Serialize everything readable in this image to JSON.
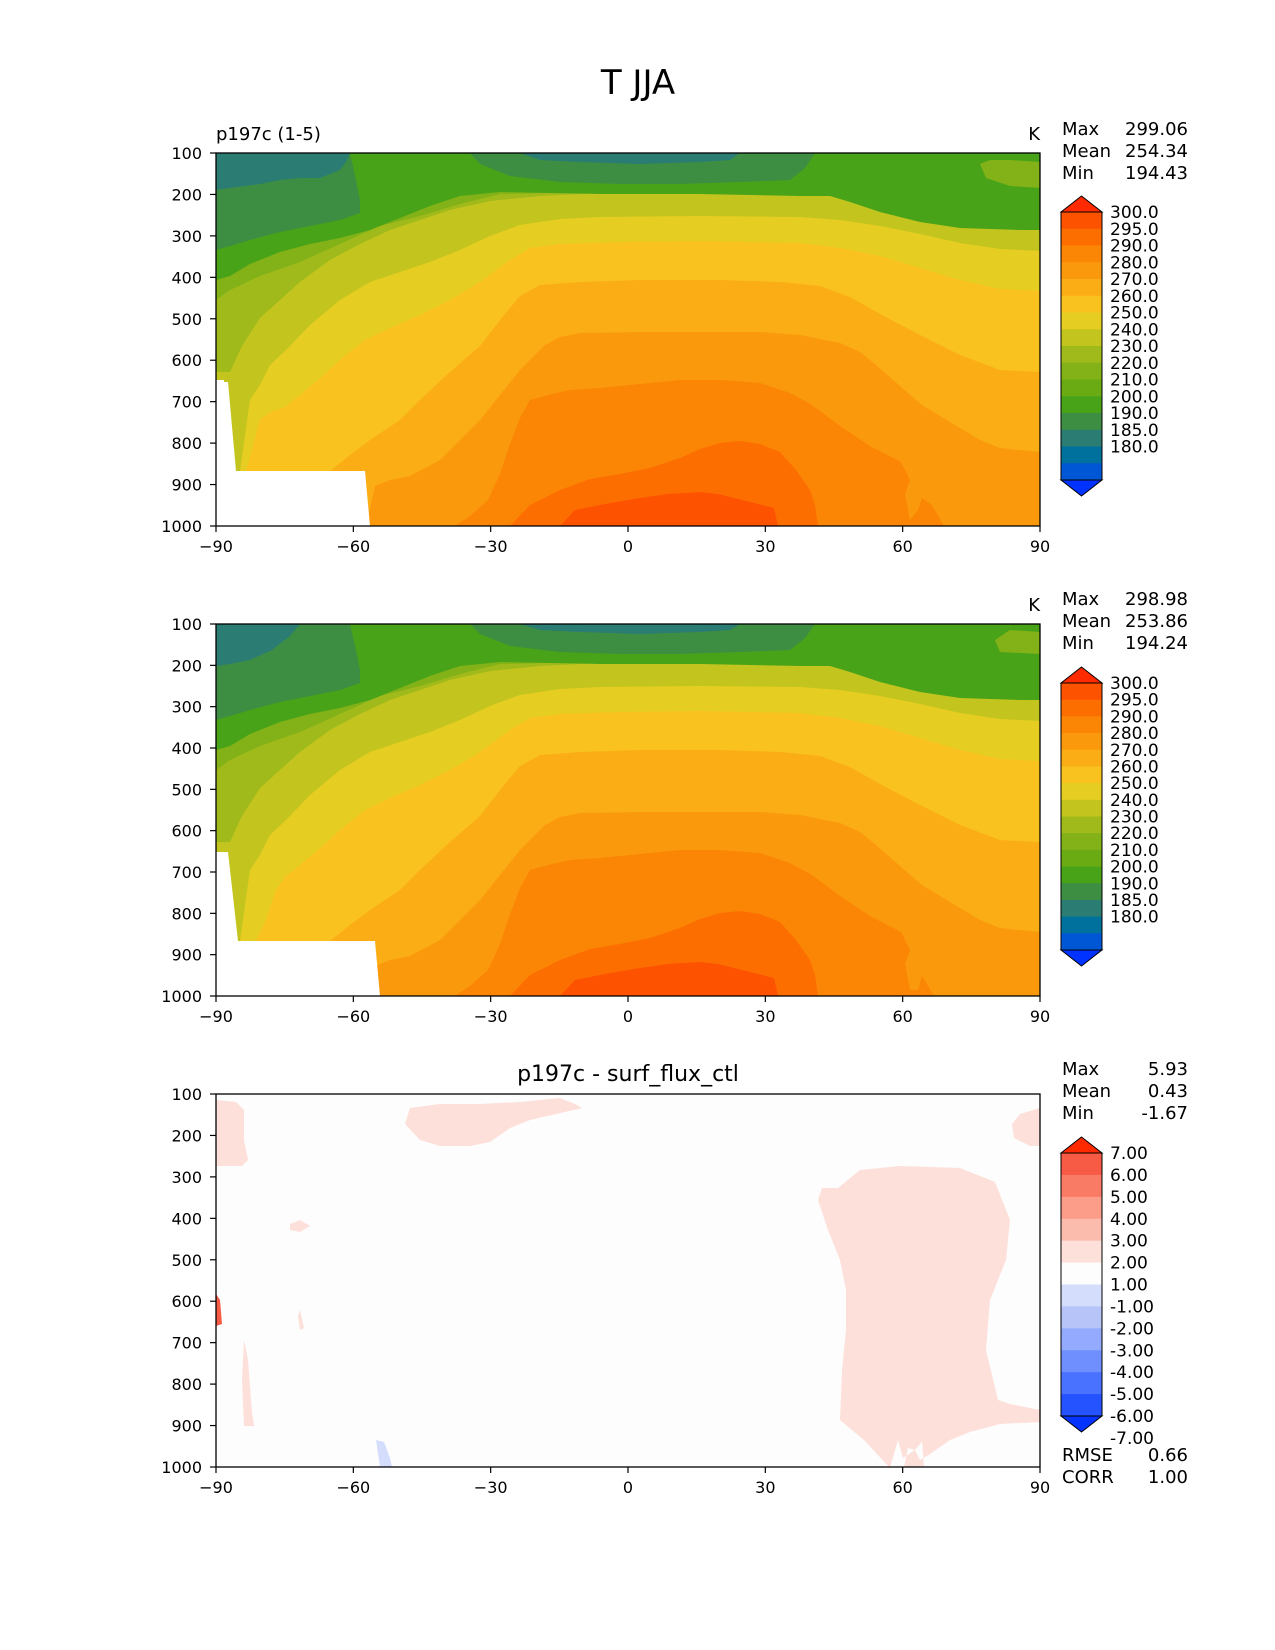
{
  "figure": {
    "title": "T JJA"
  },
  "colors": {
    "temp_levels": [
      "#0033ff",
      "#0057d6",
      "#00709c",
      "#2b7d73",
      "#3d8e42",
      "#49a318",
      "#6aab14",
      "#82b217",
      "#a0ba1b",
      "#c3c51e",
      "#e6cd22",
      "#f9c21f",
      "#fbad16",
      "#fb990c",
      "#fb8605",
      "#fd6e00",
      "#fd5200",
      "#ff2a00"
    ],
    "diff_levels": [
      "#0533ff",
      "#2453ff",
      "#4872ff",
      "#6f8fff",
      "#94aaff",
      "#b6c4f7",
      "#d4defc",
      "#fdfdfd",
      "#fde0d9",
      "#fbbcae",
      "#fb9d89",
      "#f97b65",
      "#f75a45",
      "#ff2a00"
    ]
  },
  "panels": [
    {
      "left_title": "p197c (1-5)",
      "center_title": "",
      "units": "K",
      "stats": [
        {
          "label": "Max",
          "value": "299.06"
        },
        {
          "label": "Mean",
          "value": "254.34"
        },
        {
          "label": "Min",
          "value": "194.43"
        }
      ],
      "colorbar_labels": [
        "300.0",
        "295.0",
        "290.0",
        "280.0",
        "270.0",
        "260.0",
        "250.0",
        "240.0",
        "230.0",
        "220.0",
        "210.0",
        "200.0",
        "190.0",
        "185.0",
        "180.0"
      ],
      "extra_stats": []
    },
    {
      "left_title": "",
      "center_title": "",
      "units": "K",
      "stats": [
        {
          "label": "Max",
          "value": "298.98"
        },
        {
          "label": "Mean",
          "value": "253.86"
        },
        {
          "label": "Min",
          "value": "194.24"
        }
      ],
      "colorbar_labels": [
        "300.0",
        "295.0",
        "290.0",
        "280.0",
        "270.0",
        "260.0",
        "250.0",
        "240.0",
        "230.0",
        "220.0",
        "210.0",
        "200.0",
        "190.0",
        "185.0",
        "180.0"
      ],
      "extra_stats": []
    },
    {
      "left_title": "",
      "center_title": "p197c - surf_flux_ctl",
      "units": "",
      "stats": [
        {
          "label": "Max",
          "value": "5.93"
        },
        {
          "label": "Mean",
          "value": "0.43"
        },
        {
          "label": "Min",
          "value": "-1.67"
        }
      ],
      "colorbar_labels": [
        "7.00",
        "6.00",
        "5.00",
        "4.00",
        "3.00",
        "2.00",
        "1.00",
        "-1.00",
        "-2.00",
        "-3.00",
        "-4.00",
        "-5.00",
        "-6.00",
        "-7.00"
      ],
      "extra_stats": [
        {
          "label": "RMSE",
          "value": "0.66"
        },
        {
          "label": "CORR",
          "value": "1.00"
        }
      ]
    }
  ],
  "chart_data": [
    {
      "type": "heatmap",
      "title": "p197c (1-5)",
      "units": "K",
      "x_ticks": [
        "−90",
        "−60",
        "−30",
        "0",
        "30",
        "60",
        "90"
      ],
      "y_ticks": [
        "100",
        "200",
        "300",
        "400",
        "500",
        "600",
        "700",
        "800",
        "900",
        "1000"
      ],
      "xlim": [
        -90,
        90
      ],
      "ylim": [
        1000,
        100
      ],
      "y_reversed": true,
      "colorbar_levels": [
        180,
        185,
        190,
        200,
        210,
        220,
        230,
        240,
        250,
        260,
        270,
        280,
        290,
        295,
        300
      ],
      "max": 299.06,
      "mean": 254.34,
      "min": 194.43
    },
    {
      "type": "heatmap",
      "title": "",
      "units": "K",
      "x_ticks": [
        "−90",
        "−60",
        "−30",
        "0",
        "30",
        "60",
        "90"
      ],
      "y_ticks": [
        "100",
        "200",
        "300",
        "400",
        "500",
        "600",
        "700",
        "800",
        "900",
        "1000"
      ],
      "xlim": [
        -90,
        90
      ],
      "ylim": [
        1000,
        100
      ],
      "y_reversed": true,
      "colorbar_levels": [
        180,
        185,
        190,
        200,
        210,
        220,
        230,
        240,
        250,
        260,
        270,
        280,
        290,
        295,
        300
      ],
      "max": 298.98,
      "mean": 253.86,
      "min": 194.24
    },
    {
      "type": "heatmap",
      "title": "p197c - surf_flux_ctl",
      "units": "",
      "x_ticks": [
        "−90",
        "−60",
        "−30",
        "0",
        "30",
        "60",
        "90"
      ],
      "y_ticks": [
        "100",
        "200",
        "300",
        "400",
        "500",
        "600",
        "700",
        "800",
        "900",
        "1000"
      ],
      "xlim": [
        -90,
        90
      ],
      "ylim": [
        1000,
        100
      ],
      "y_reversed": true,
      "colorbar_levels": [
        -7,
        -6,
        -5,
        -4,
        -3,
        -2,
        -1,
        1,
        2,
        3,
        4,
        5,
        6,
        7
      ],
      "max": 5.93,
      "mean": 0.43,
      "min": -1.67,
      "rmse": 0.66,
      "corr": 1.0
    }
  ]
}
